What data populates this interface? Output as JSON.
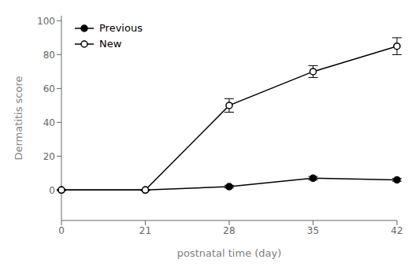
{
  "chart_data": {
    "type": "line",
    "xlabel": "postnatal time (day)",
    "ylabel": "Dermatitis score",
    "categories": [
      "0",
      "21",
      "28",
      "35",
      "42"
    ],
    "series": [
      {
        "name": "Previous",
        "color": "#000000",
        "marker": "circle",
        "values": [
          0,
          0,
          2,
          7,
          6
        ],
        "errors": [
          0.3,
          0.3,
          0.8,
          1.0,
          0.8
        ]
      },
      {
        "name": "New",
        "color": "#000000",
        "marker": "open_circle",
        "values": [
          0,
          0,
          50,
          70,
          85
        ],
        "errors": [
          0.3,
          0.3,
          4.0,
          3.5,
          5.0
        ]
      }
    ],
    "ylim": [
      -18,
      103
    ],
    "yticks": [
      0,
      20,
      40,
      60,
      80,
      100
    ],
    "grid": false,
    "legend": "upper left"
  }
}
